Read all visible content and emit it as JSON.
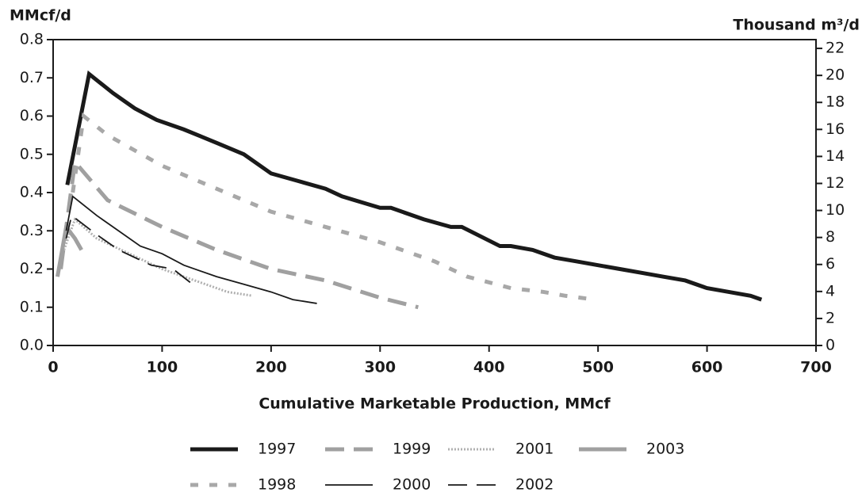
{
  "chart_data": {
    "type": "line",
    "ylabel": "MMcf/d",
    "y2label": "Thousand m³/d",
    "xlabel": "Cumulative Marketable Production, MMcf",
    "xlim": [
      0,
      700
    ],
    "xticks": [
      0,
      100,
      200,
      300,
      400,
      500,
      600,
      700
    ],
    "ylim": [
      0,
      0.8
    ],
    "yticks": [
      {
        "value": 0,
        "label": "0.0"
      },
      0.1,
      0.2,
      0.3,
      0.4,
      0.5,
      0.6,
      0.7,
      0.8
    ],
    "y2lim": [
      0,
      22.65
    ],
    "y2ticks": [
      0,
      2,
      4,
      6,
      8,
      10,
      12,
      14,
      16,
      18,
      20,
      22
    ],
    "series": [
      {
        "name": "1997",
        "color": "#1a1a1a",
        "dash": "solid",
        "weight": "heavy",
        "x": [
          13,
          33,
          55,
          75,
          95,
          120,
          150,
          175,
          200,
          225,
          250,
          265,
          300,
          310,
          340,
          365,
          375,
          410,
          420,
          440,
          460,
          480,
          500,
          520,
          540,
          560,
          580,
          600,
          620,
          640,
          650
        ],
        "values": [
          0.42,
          0.71,
          0.66,
          0.62,
          0.59,
          0.565,
          0.53,
          0.5,
          0.45,
          0.43,
          0.41,
          0.39,
          0.36,
          0.36,
          0.33,
          0.31,
          0.31,
          0.26,
          0.26,
          0.25,
          0.23,
          0.22,
          0.21,
          0.2,
          0.19,
          0.18,
          0.17,
          0.15,
          0.14,
          0.13,
          0.12
        ]
      },
      {
        "name": "1999",
        "color": "#a0a0a0",
        "dash": "dashed",
        "weight": "heavy",
        "x": [
          7,
          20,
          50,
          100,
          150,
          200,
          250,
          300,
          335
        ],
        "values": [
          0.2,
          0.48,
          0.38,
          0.31,
          0.25,
          0.2,
          0.17,
          0.125,
          0.1
        ]
      },
      {
        "name": "2001",
        "color": "#b0b0b0",
        "dash": "dotted",
        "weight": "medium",
        "x": [
          10,
          20,
          40,
          70,
          100,
          130,
          160,
          183
        ],
        "values": [
          0.25,
          0.33,
          0.28,
          0.24,
          0.2,
          0.17,
          0.14,
          0.13
        ]
      },
      {
        "name": "2003",
        "color": "#a0a0a0",
        "dash": "solid",
        "weight": "heavy",
        "x": [
          4,
          12,
          20,
          26
        ],
        "values": [
          0.18,
          0.31,
          0.28,
          0.25
        ]
      },
      {
        "name": "1998",
        "color": "#a8a8a8",
        "dash": "short",
        "weight": "heavy",
        "x": [
          18,
          28,
          50,
          100,
          150,
          200,
          250,
          300,
          350,
          380,
          420,
          450,
          470,
          497
        ],
        "values": [
          0.4,
          0.6,
          0.55,
          0.47,
          0.41,
          0.35,
          0.31,
          0.27,
          0.22,
          0.18,
          0.15,
          0.14,
          0.13,
          0.12
        ]
      },
      {
        "name": "2000",
        "color": "#1a1a1a",
        "dash": "solid",
        "weight": "light",
        "x": [
          12,
          18,
          40,
          60,
          80,
          100,
          120,
          150,
          175,
          200,
          220,
          242
        ],
        "values": [
          0.3,
          0.39,
          0.34,
          0.3,
          0.26,
          0.24,
          0.21,
          0.18,
          0.16,
          0.14,
          0.12,
          0.11
        ]
      },
      {
        "name": "2002",
        "color": "#1a1a1a",
        "dash": "dashed",
        "weight": "light",
        "x": [
          12,
          17,
          40,
          60,
          90,
          110,
          128
        ],
        "values": [
          0.28,
          0.34,
          0.29,
          0.25,
          0.21,
          0.2,
          0.16
        ]
      }
    ]
  }
}
